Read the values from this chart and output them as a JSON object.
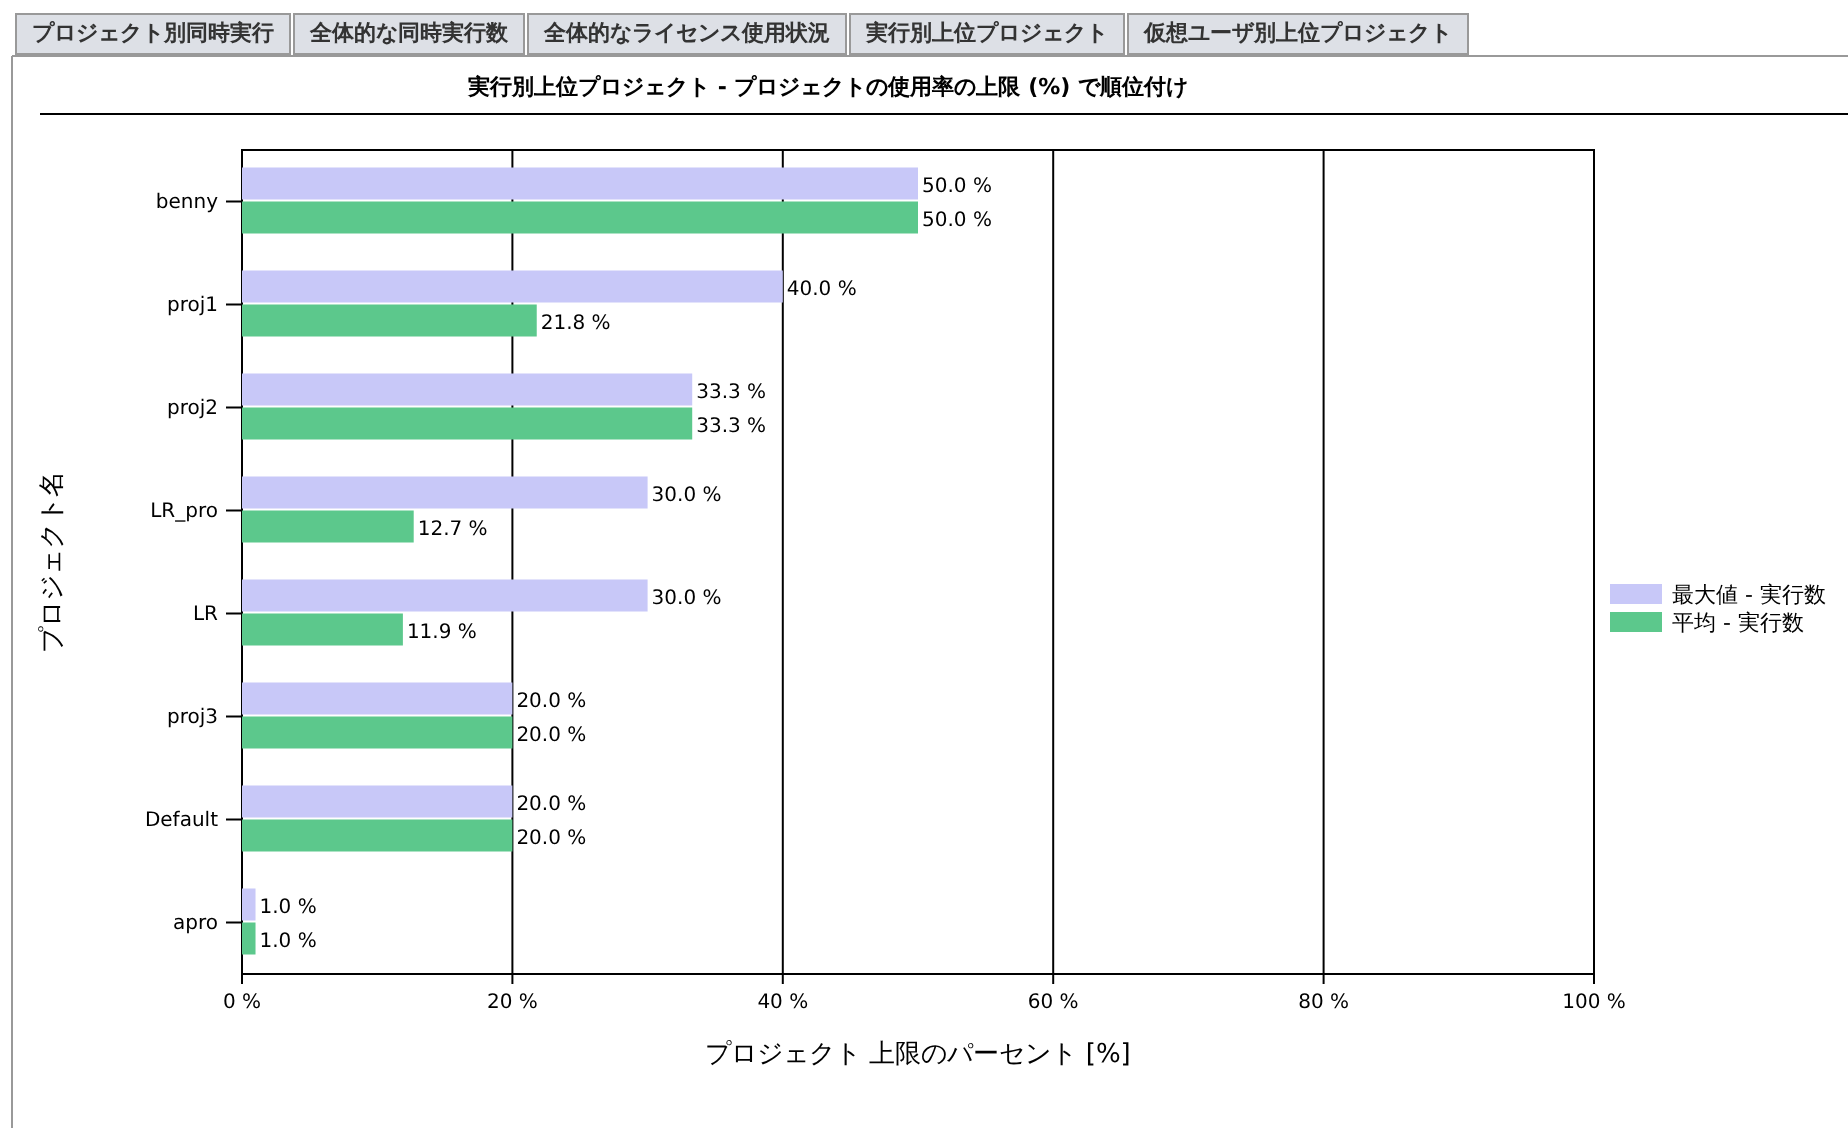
{
  "chart_data": {
    "type": "bar",
    "orientation": "horizontal",
    "title": "実行別上位プロジェクト - プロジェクトの使用率の上限 (%) で順位付け",
    "annotations": [
      "プロジェクト別同時実行",
      "全体的な同時実行数",
      "全体的なライセンス使用状況",
      "実行別上位プロジェクト",
      "仮想ユーザ別上位プロジェクト"
    ],
    "xlabel": "プロジェクト 上限のパーセント [%]",
    "ylabel": "プロジェクト名",
    "categories": [
      "benny",
      "proj1",
      "proj2",
      "LR_pro",
      "LR",
      "proj3",
      "Default",
      "apro"
    ],
    "series": [
      {
        "name": "最大値 - 実行数",
        "color": "#c8c8f8",
        "values": [
          50.0,
          40.0,
          33.3,
          30.0,
          30.0,
          20.0,
          20.0,
          1.0
        ],
        "value_labels": [
          "50.0 %",
          "40.0 %",
          "33.3 %",
          "30.0 %",
          "30.0 %",
          "20.0 %",
          "20.0 %",
          "1.0 %"
        ]
      },
      {
        "name": "平均 - 実行数",
        "color": "#5cc88c",
        "values": [
          50.0,
          21.8,
          33.3,
          12.7,
          11.9,
          20.0,
          20.0,
          1.0
        ],
        "value_labels": [
          "50.0 %",
          "21.8 %",
          "33.3 %",
          "12.7 %",
          "11.9 %",
          "20.0 %",
          "20.0 %",
          "1.0 %"
        ]
      }
    ],
    "xlim": [
      0,
      100
    ],
    "xticks": [
      {
        "value": 0,
        "label": "0 %"
      },
      {
        "value": 20,
        "label": "20 %"
      },
      {
        "value": 40,
        "label": "40 %"
      },
      {
        "value": 60,
        "label": "60 %"
      },
      {
        "value": 80,
        "label": "80 %"
      },
      {
        "value": 100,
        "label": "100 %"
      }
    ],
    "grid": "x",
    "legend": "right"
  }
}
